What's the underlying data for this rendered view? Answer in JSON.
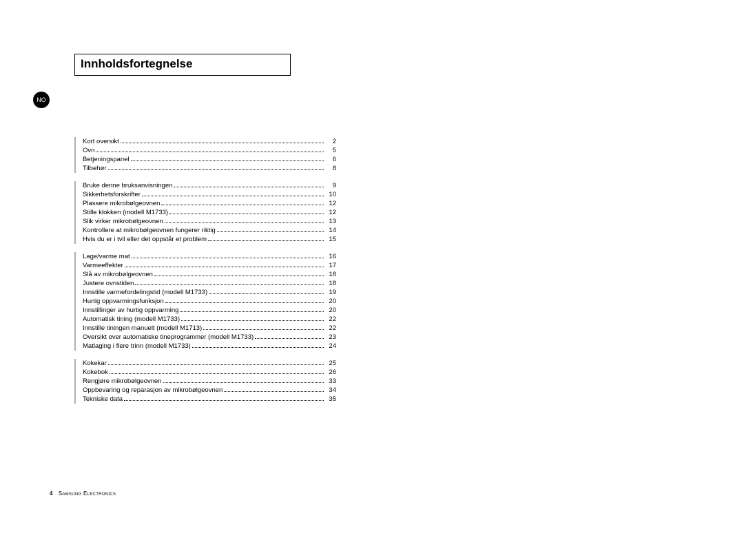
{
  "title": "Innholdsfortegnelse",
  "lang_badge": "NO",
  "footer": {
    "page": "4",
    "brand": "Samsung Electronics"
  },
  "sections": [
    {
      "items": [
        {
          "label": "Kort oversikt",
          "page": "2"
        },
        {
          "label": "Ovn",
          "page": "5"
        },
        {
          "label": "Betjeningspanel",
          "page": "6"
        },
        {
          "label": "Tilbehør",
          "page": "8"
        }
      ]
    },
    {
      "items": [
        {
          "label": "Bruke denne bruksanvisningen",
          "page": "9"
        },
        {
          "label": "Sikkerhetsforskrifter",
          "page": "10"
        },
        {
          "label": "Plassere mikrobølgeovnen",
          "page": "12"
        },
        {
          "label": "Stille klokken (modell M1733)",
          "page": "12"
        },
        {
          "label": "Slik virker mikrobølgeovnen",
          "page": "13"
        },
        {
          "label": "Kontrollere at mikrobølgeovnen fungerer riktig",
          "page": "14"
        },
        {
          "label": "Hvis du er i tvil eller det oppstår et problem",
          "page": "15"
        }
      ]
    },
    {
      "items": [
        {
          "label": "Lage/varme mat",
          "page": "16"
        },
        {
          "label": "Varmeeffekter",
          "page": "17"
        },
        {
          "label": "Slå av mikrobølgeovnen",
          "page": "18"
        },
        {
          "label": "Justere ovnstiden",
          "page": "18"
        },
        {
          "label": "Innstille varmefordelingstid (modell M1733)",
          "page": "19"
        },
        {
          "label": "Hurtig oppvarmingsfunksjon",
          "page": "20"
        },
        {
          "label": "Innstillinger av hurtig oppvarming",
          "page": "20"
        },
        {
          "label": "Automatisk tining (modell M1733)",
          "page": "22"
        },
        {
          "label": "Innstille tiningen manuelt (modell M1713)",
          "page": "22"
        },
        {
          "label": "Oversikt over automatiske tineprogrammer (modell M1733)",
          "page": "23"
        },
        {
          "label": "Matlaging i flere trinn (modell M1733)",
          "page": "24"
        }
      ]
    },
    {
      "items": [
        {
          "label": "Kokekar",
          "page": "25"
        },
        {
          "label": "Kokebok",
          "page": "26"
        },
        {
          "label": "Rengjøre mikrobølgeovnen",
          "page": "33"
        },
        {
          "label": "Oppbevaring og reparasjon av mikrobølgeovnen",
          "page": "34"
        },
        {
          "label": "Tekniske data",
          "page": "35"
        }
      ]
    }
  ]
}
